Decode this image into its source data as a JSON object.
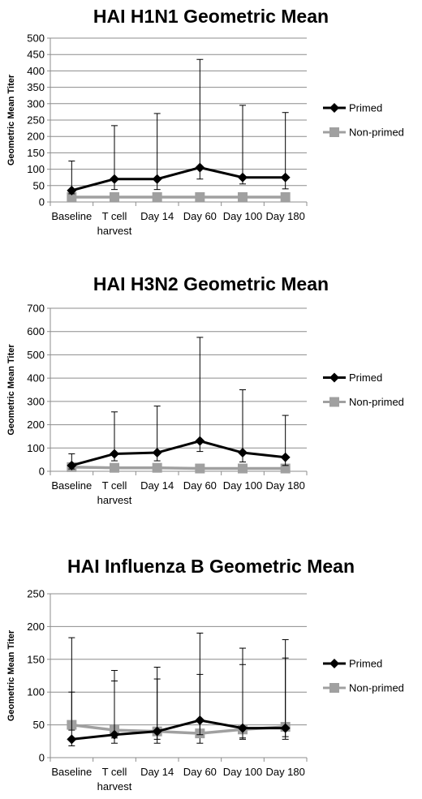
{
  "chart_data": [
    {
      "type": "line",
      "title": "HAI H1N1 Geometric Mean",
      "ylabel": "Geometric Mean Titer",
      "xlabel": "",
      "ylim": [
        0,
        500
      ],
      "ystep": 50,
      "grid": true,
      "legend_position": "right",
      "categories": [
        "Baseline",
        "T cell harvest",
        "Day 14",
        "Day 60",
        "Day 100",
        "Day 180"
      ],
      "category_lines": [
        [
          "Baseline"
        ],
        [
          "T cell",
          "harvest"
        ],
        [
          "Day 14"
        ],
        [
          "Day 60"
        ],
        [
          "Day 100"
        ],
        [
          "Day 180"
        ]
      ],
      "series": [
        {
          "name": "Primed",
          "color": "#000000",
          "marker": "diamond",
          "values": [
            35,
            70,
            70,
            105,
            75,
            75
          ],
          "err_upper": [
            125,
            233,
            270,
            435,
            295,
            273
          ],
          "err_lower": [
            25,
            38,
            38,
            70,
            55,
            40
          ]
        },
        {
          "name": "Non-primed",
          "color": "#a0a0a0",
          "marker": "square",
          "values": [
            15,
            15,
            15,
            15,
            15,
            15
          ],
          "err_upper": [
            22,
            22,
            22,
            25,
            22,
            22
          ],
          "err_lower": [
            8,
            8,
            8,
            8,
            8,
            8
          ]
        }
      ]
    },
    {
      "type": "line",
      "title": "HAI H3N2 Geometric Mean",
      "ylabel": "Geometric Mean Titer",
      "xlabel": "",
      "ylim": [
        0,
        700
      ],
      "ystep": 100,
      "grid": true,
      "legend_position": "right",
      "categories": [
        "Baseline",
        "T cell harvest",
        "Day 14",
        "Day 60",
        "Day 100",
        "Day 180"
      ],
      "category_lines": [
        [
          "Baseline"
        ],
        [
          "T cell",
          "harvest"
        ],
        [
          "Day 14"
        ],
        [
          "Day 60"
        ],
        [
          "Day 100"
        ],
        [
          "Day 180"
        ]
      ],
      "series": [
        {
          "name": "Primed",
          "color": "#000000",
          "marker": "diamond",
          "values": [
            25,
            75,
            80,
            130,
            80,
            60
          ],
          "err_upper": [
            75,
            255,
            280,
            575,
            350,
            240
          ],
          "err_lower": [
            10,
            45,
            45,
            85,
            40,
            25
          ]
        },
        {
          "name": "Non-primed",
          "color": "#a0a0a0",
          "marker": "square",
          "values": [
            18,
            15,
            15,
            12,
            12,
            12
          ],
          "err_upper": [
            30,
            28,
            28,
            22,
            22,
            22
          ],
          "err_lower": [
            8,
            8,
            8,
            6,
            6,
            6
          ]
        }
      ]
    },
    {
      "type": "line",
      "title": "HAI Influenza B Geometric Mean",
      "ylabel": "Geometric Mean Titer",
      "xlabel": "",
      "ylim": [
        0,
        250
      ],
      "ystep": 50,
      "grid": true,
      "legend_position": "right",
      "categories": [
        "Baseline",
        "T cell harvest",
        "Day 14",
        "Day 60",
        "Day 100",
        "Day 180"
      ],
      "category_lines": [
        [
          "Baseline"
        ],
        [
          "T cell",
          "harvest"
        ],
        [
          "Day 14"
        ],
        [
          "Day 60"
        ],
        [
          "Day 100"
        ],
        [
          "Day 180"
        ]
      ],
      "series": [
        {
          "name": "Primed",
          "color": "#000000",
          "marker": "diamond",
          "values": [
            28,
            35,
            40,
            57,
            45,
            45
          ],
          "err_upper": [
            183,
            133,
            138,
            190,
            167,
            180
          ],
          "err_lower": [
            18,
            22,
            22,
            35,
            28,
            28
          ]
        },
        {
          "name": "Non-primed",
          "color": "#a0a0a0",
          "marker": "square",
          "values": [
            50,
            42,
            40,
            37,
            43,
            47
          ],
          "err_upper": [
            100,
            117,
            120,
            127,
            142,
            152
          ],
          "err_lower": [
            42,
            30,
            28,
            22,
            30,
            32
          ]
        }
      ]
    }
  ]
}
